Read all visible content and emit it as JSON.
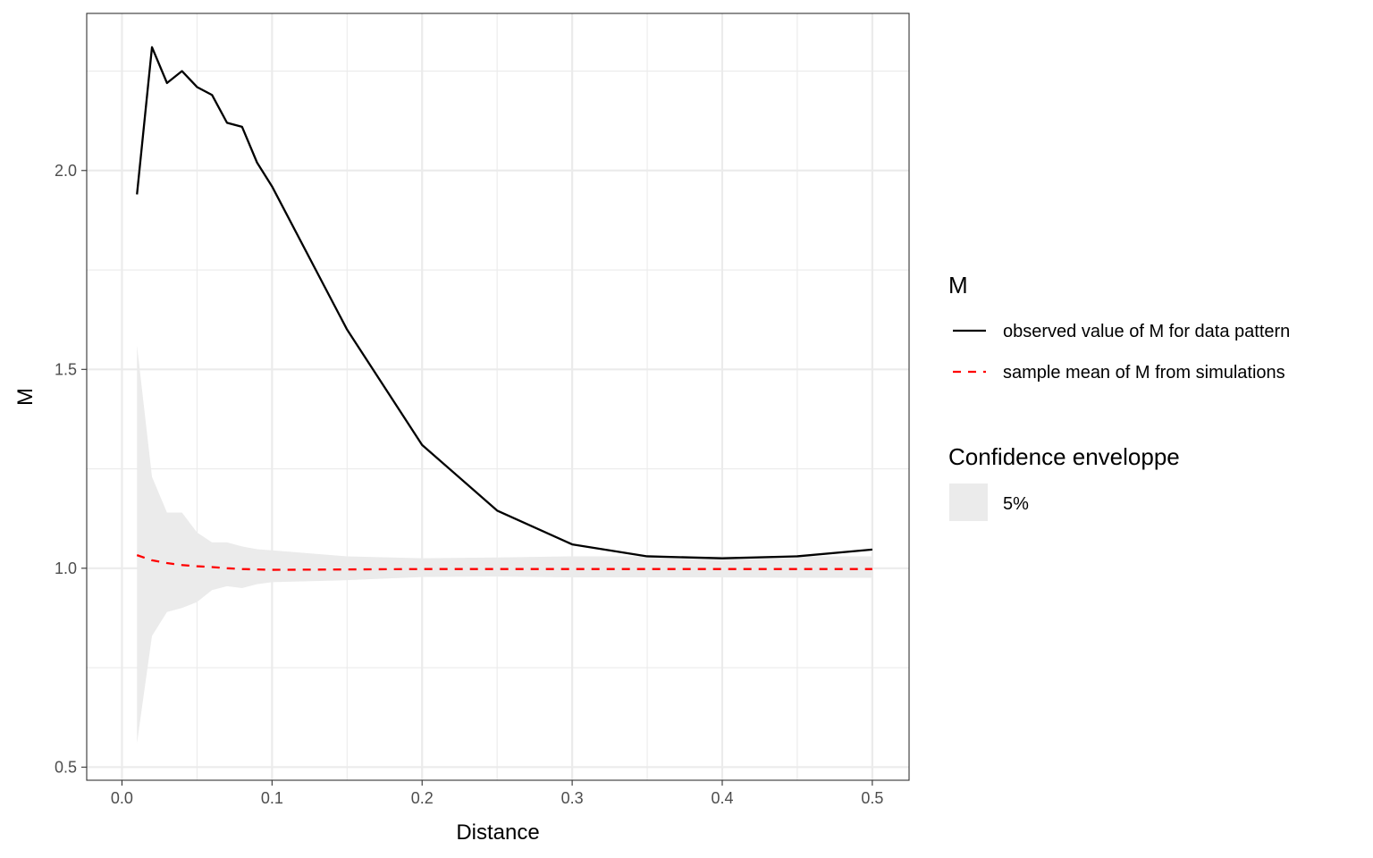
{
  "chart_data": {
    "type": "line",
    "xlabel": "Distance",
    "ylabel": "M",
    "xlim": [
      -0.0235,
      0.5245
    ],
    "ylim": [
      0.467,
      2.395
    ],
    "x_ticks": [
      0.0,
      0.1,
      0.2,
      0.3,
      0.4,
      0.5
    ],
    "x_tick_labels": [
      "0.0",
      "0.1",
      "0.2",
      "0.3",
      "0.4",
      "0.5"
    ],
    "y_ticks": [
      0.5,
      1.0,
      1.5,
      2.0
    ],
    "y_tick_labels": [
      "0.5",
      "1.0",
      "1.5",
      "2.0"
    ],
    "grid": true,
    "legend_placement": "right",
    "x": [
      0.01,
      0.02,
      0.03,
      0.04,
      0.05,
      0.06,
      0.07,
      0.08,
      0.09,
      0.1,
      0.15,
      0.2,
      0.25,
      0.3,
      0.35,
      0.4,
      0.45,
      0.5
    ],
    "series": [
      {
        "name": "observed value of M for data pattern",
        "color": "#000000",
        "style": "solid",
        "values": [
          1.94,
          2.31,
          2.22,
          2.25,
          2.21,
          2.19,
          2.12,
          2.11,
          2.02,
          1.96,
          1.6,
          1.31,
          1.145,
          1.06,
          1.03,
          1.025,
          1.03,
          1.047
        ]
      },
      {
        "name": "sample mean of M from simulations",
        "color": "#ff0000",
        "style": "dashed",
        "values": [
          1.033,
          1.02,
          1.013,
          1.008,
          1.005,
          1.003,
          1.0,
          0.998,
          0.997,
          0.996,
          0.997,
          0.998,
          0.998,
          0.998,
          0.998,
          0.998,
          0.998,
          0.998
        ]
      }
    ],
    "envelope": {
      "name": "5%",
      "color": "#ebebeb",
      "lower": [
        0.56,
        0.83,
        0.89,
        0.9,
        0.915,
        0.945,
        0.955,
        0.95,
        0.96,
        0.965,
        0.97,
        0.978,
        0.979,
        0.977,
        0.977,
        0.977,
        0.976,
        0.976
      ],
      "upper": [
        1.56,
        1.23,
        1.14,
        1.14,
        1.09,
        1.065,
        1.065,
        1.055,
        1.048,
        1.045,
        1.03,
        1.025,
        1.027,
        1.03,
        1.03,
        1.03,
        1.03,
        1.03
      ]
    },
    "legends": [
      {
        "title": "M",
        "items": [
          {
            "label": "observed value of M for data pattern",
            "color": "#000000",
            "style": "solid"
          },
          {
            "label": "sample mean of M from simulations",
            "color": "#ff0000",
            "style": "dashed"
          }
        ]
      },
      {
        "title": "Confidence enveloppe",
        "items": [
          {
            "label": "5%",
            "color": "#ebebeb",
            "style": "fill"
          }
        ]
      }
    ]
  }
}
